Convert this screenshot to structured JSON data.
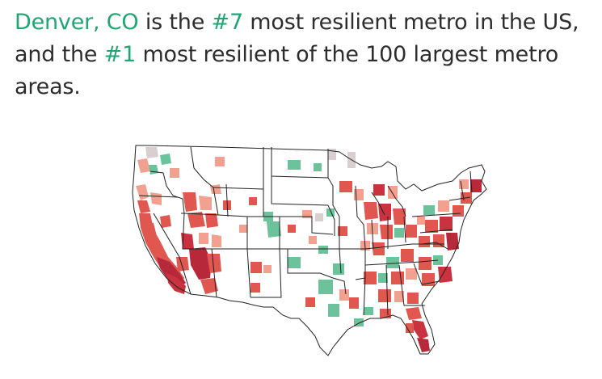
{
  "headline": {
    "metro": "Denver, CO",
    "part1": " is the ",
    "rank_us": "#7",
    "part2": " most resilient metro in the US, and the ",
    "rank_largest": "#1",
    "part3": " most resilient of the 100 largest metro areas."
  },
  "colors": {
    "accent_text": "#1fa672",
    "body_text": "#2d2d2d",
    "state_border": "#222222",
    "resilient_green": "#6cc39b",
    "vulnerable_red_dark": "#b7283a",
    "vulnerable_red_mid": "#e0574f",
    "vulnerable_red_light": "#f2a08f",
    "neutral_light": "#d9cfcf"
  },
  "map": {
    "type": "choropleth",
    "region": "contiguous United States",
    "unit": "metro areas",
    "scale": "diverging green (more resilient) to red (less resilient)"
  }
}
